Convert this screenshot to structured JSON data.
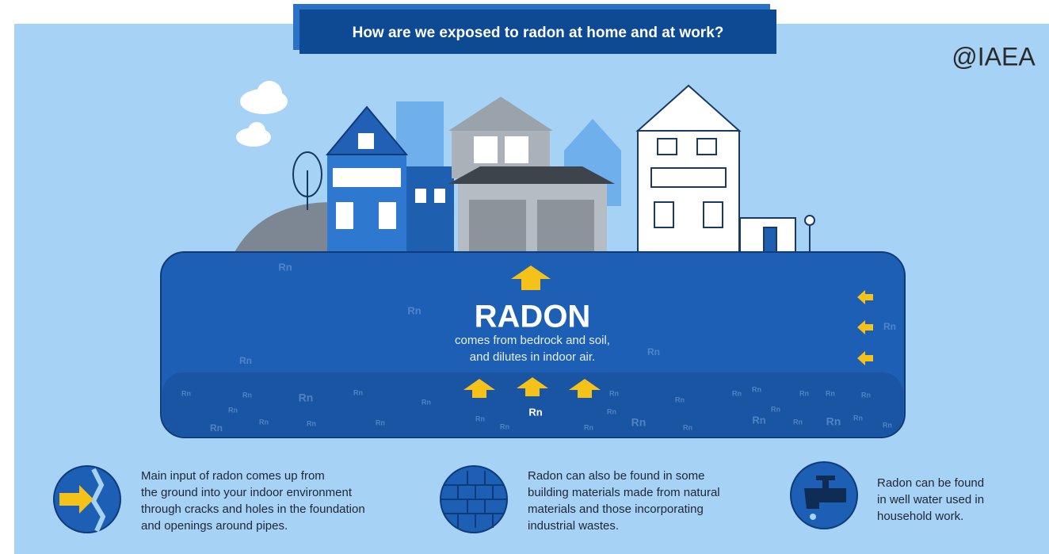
{
  "header": {
    "title": "How are we exposed to radon at home and at work?",
    "credit": "@IAEA"
  },
  "soil": {
    "headline": "RADON",
    "subtitle": [
      "comes from bedrock and soil,",
      "and dilutes in indoor air."
    ],
    "center_label": "Rn",
    "rn_labels": [
      "Rn",
      "Rn",
      "Rn",
      "Rn",
      "Rn",
      "Rn",
      "Rn",
      "Rn",
      "Rn",
      "Rn",
      "Rn",
      "Rn",
      "Rn",
      "Rn",
      "Rn",
      "Rn",
      "Rn",
      "Rn",
      "Rn",
      "Rn",
      "Rn",
      "Rn",
      "Rn",
      "Rn",
      "Rn",
      "Rn",
      "Rn",
      "Rn",
      "Rn",
      "Rn",
      "Rn",
      "Rn",
      "Rn",
      "Rn"
    ]
  },
  "info": [
    {
      "lines": [
        "Main input of radon comes up from",
        "the ground into your indoor environment",
        "through cracks and holes in the foundation",
        "and openings around pipes."
      ]
    },
    {
      "lines": [
        "Radon can also be found in some",
        "building materials made from natural",
        "materials and those incorporating",
        "industrial wastes."
      ]
    },
    {
      "lines": [
        "Radon can be found",
        "in well water used in",
        "household work."
      ]
    }
  ]
}
